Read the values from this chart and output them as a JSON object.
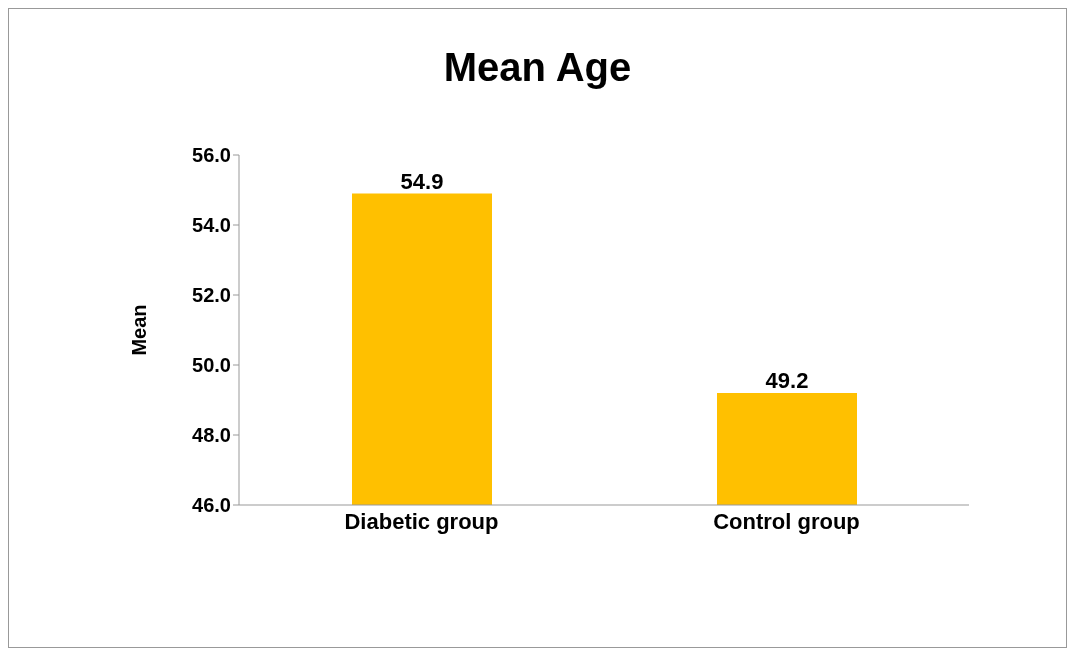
{
  "chart_data": {
    "type": "bar",
    "title": "Mean Age",
    "ylabel": "Mean",
    "categories": [
      "Diabetic group",
      "Control group"
    ],
    "values": [
      54.9,
      49.2
    ],
    "color": "#ffc000",
    "ylim": [
      46,
      56
    ],
    "yticks": [
      {
        "value": 46,
        "label": "46.0"
      },
      {
        "value": 48,
        "label": "48.0"
      },
      {
        "value": 50,
        "label": "50.0"
      },
      {
        "value": 52,
        "label": "52.0"
      },
      {
        "value": 54,
        "label": "54.0"
      },
      {
        "value": 56,
        "label": "56.0"
      }
    ],
    "data_labels": true
  }
}
